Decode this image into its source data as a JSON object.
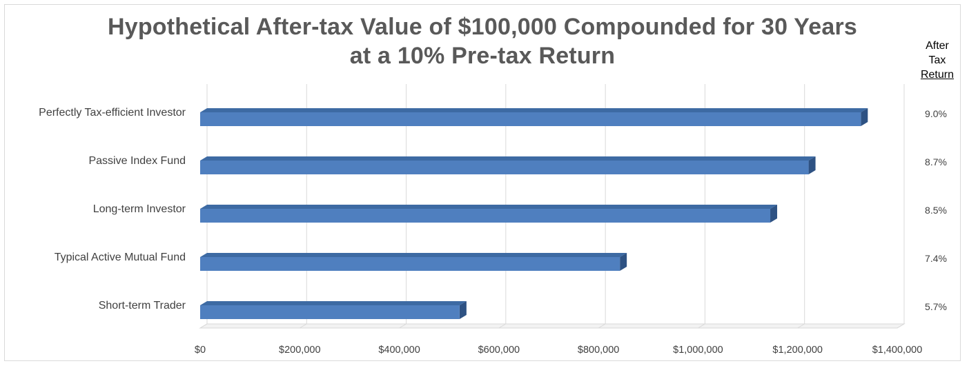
{
  "title_line1": "Hypothetical After-tax Value of $100,000 Compounded for 30 Years",
  "title_line2": "at a 10% Pre-tax Return",
  "side_header": {
    "line1": "After",
    "line2": "Tax",
    "line3": "Return"
  },
  "colors": {
    "bar_front": "#4f7fbf",
    "bar_top": "#3d6aa3",
    "bar_side": "#2e5283",
    "grid": "#d9d9d9"
  },
  "chart_data": {
    "type": "bar",
    "orientation": "horizontal",
    "style": "3d",
    "title": "Hypothetical After-tax Value of $100,000 Compounded for 30 Years at a 10% Pre-tax Return",
    "categories": [
      "Perfectly Tax-efficient Investor",
      "Passive Index Fund",
      "Long-term Investor",
      "Typical Active Mutual Fund",
      "Short-term Trader"
    ],
    "values": [
      1327000,
      1222000,
      1145000,
      843000,
      521000
    ],
    "after_tax_return": [
      "9.0%",
      "8.7%",
      "8.5%",
      "7.4%",
      "5.7%"
    ],
    "x_ticks": [
      "$0",
      "$200,000",
      "$400,000",
      "$600,000",
      "$800,000",
      "$1,000,000",
      "$1,200,000",
      "$1,400,000"
    ],
    "xlim": [
      0,
      1400000
    ],
    "grid": true,
    "legend": "none"
  }
}
